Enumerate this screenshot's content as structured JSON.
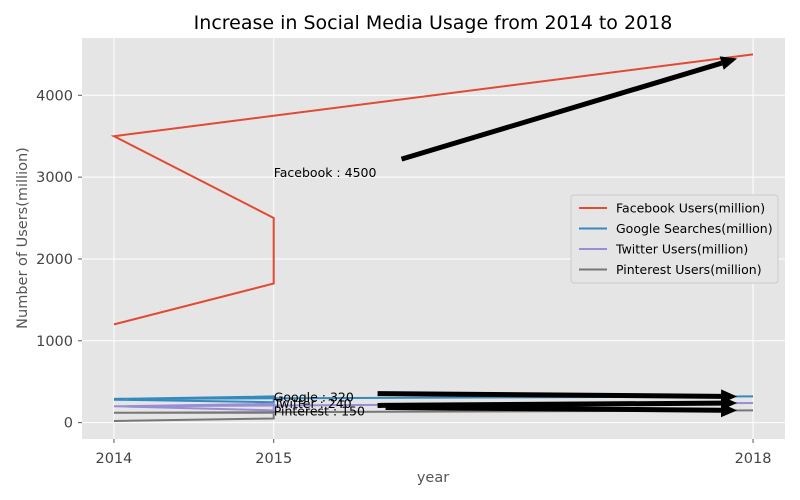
{
  "chart_data": {
    "type": "line",
    "title": "Increase in Social Media Usage from 2014 to 2018",
    "xlabel": "year",
    "ylabel": "Number of Users(million)",
    "xlim": [
      2013.8,
      2018.2
    ],
    "ylim": [
      -200,
      4700
    ],
    "x_ticks": [
      2014,
      2015,
      2018
    ],
    "y_ticks": [
      0,
      1000,
      2000,
      3000,
      4000
    ],
    "grid": true,
    "legend_position": "center-right",
    "series": [
      {
        "name": "Facebook Users(million)",
        "color": "#e24a33",
        "points": [
          [
            2014,
            1200
          ],
          [
            2015,
            1700
          ],
          [
            2015,
            2500
          ],
          [
            2014,
            3500
          ],
          [
            2018,
            4500
          ]
        ]
      },
      {
        "name": "Google Searches(million)",
        "color": "#348abd",
        "points": [
          [
            2014,
            280
          ],
          [
            2015,
            250
          ],
          [
            2015,
            320
          ],
          [
            2014,
            290
          ],
          [
            2018,
            320
          ]
        ]
      },
      {
        "name": "Twitter Users(million)",
        "color": "#988ed5",
        "points": [
          [
            2014,
            200
          ],
          [
            2015,
            150
          ],
          [
            2015,
            230
          ],
          [
            2014,
            200
          ],
          [
            2018,
            240
          ]
        ]
      },
      {
        "name": "Pinterest Users(million)",
        "color": "#777777",
        "points": [
          [
            2014,
            20
          ],
          [
            2015,
            50
          ],
          [
            2015,
            120
          ],
          [
            2014,
            120
          ],
          [
            2018,
            150
          ]
        ]
      }
    ],
    "annotations": [
      {
        "text": "Facebook : 4500",
        "text_xy": [
          2015,
          3000
        ],
        "arrow_from": [
          2015.8,
          3220
        ],
        "arrow_to": [
          2017.9,
          4450
        ]
      },
      {
        "text": "Google : 320",
        "text_xy": [
          2015,
          260
        ],
        "arrow_from": [
          2015.65,
          355
        ],
        "arrow_to": [
          2017.9,
          320
        ]
      },
      {
        "text": "Twitter : 240",
        "text_xy": [
          2015,
          180
        ],
        "arrow_from": [
          2015.65,
          210
        ],
        "arrow_to": [
          2017.9,
          240
        ]
      },
      {
        "text": "Pinterest : 150",
        "text_xy": [
          2015,
          90
        ],
        "arrow_from": [
          2015.7,
          185
        ],
        "arrow_to": [
          2017.9,
          150
        ]
      }
    ]
  }
}
